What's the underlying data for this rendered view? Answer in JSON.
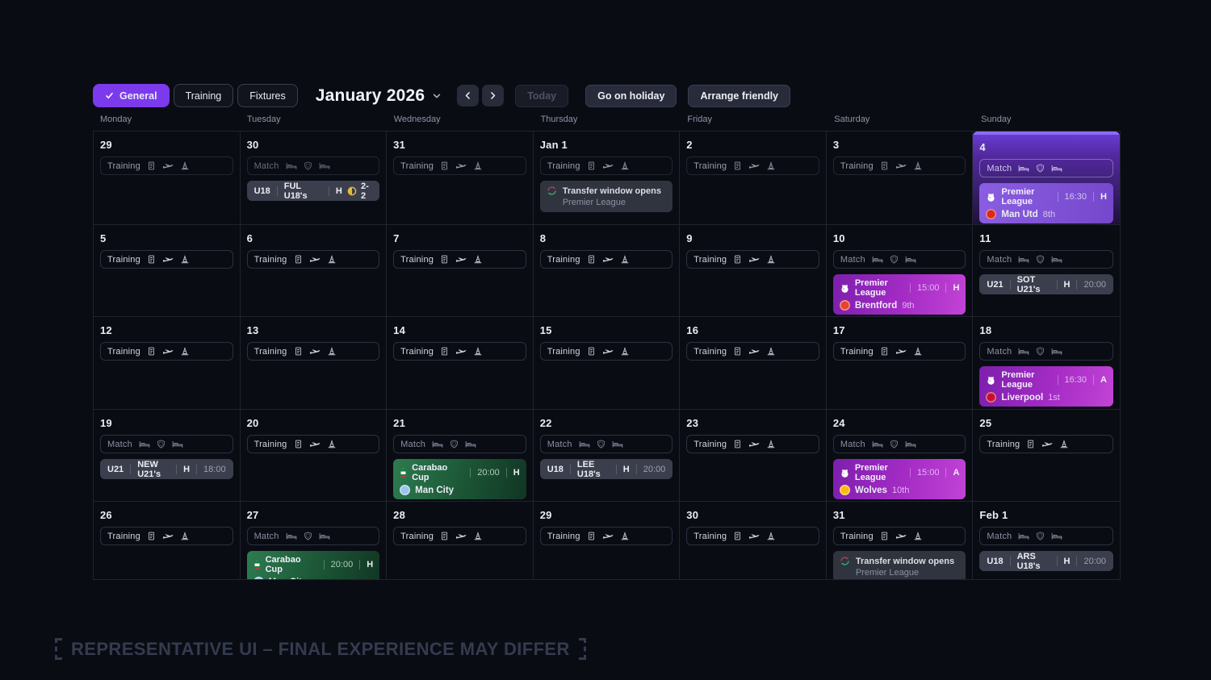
{
  "tabs": [
    {
      "label": "General",
      "active": true,
      "icon": "check"
    },
    {
      "label": "Training",
      "active": false
    },
    {
      "label": "Fixtures",
      "active": false
    }
  ],
  "toolbar": {
    "title": "January 2026",
    "today_label": "Today",
    "holiday_label": "Go on holiday",
    "friendly_label": "Arrange friendly"
  },
  "weekdays": [
    "Monday",
    "Tuesday",
    "Wednesday",
    "Thursday",
    "Friday",
    "Saturday",
    "Sunday"
  ],
  "chip_icons": {
    "training": [
      "clipboard",
      "plane",
      "cone"
    ],
    "match": [
      "bed",
      "shield",
      "bed"
    ]
  },
  "chip_labels": {
    "training": "Training",
    "match": "Match"
  },
  "colors": {
    "accent_purple": "#7c3aed",
    "pl_card_purple": "#a52cc5",
    "cup_card_green": "#1c5737",
    "draw_yellow": "#e3b93c"
  },
  "calendar": {
    "days": [
      {
        "label": "29",
        "past": true,
        "chip": "training",
        "events": []
      },
      {
        "label": "30",
        "past": true,
        "chip": "match",
        "events": [
          {
            "type": "result",
            "level": "U18",
            "opponent": "FUL U18's",
            "venue": "H",
            "score": "2-2",
            "outcome_icon": "draw-indicator"
          }
        ]
      },
      {
        "label": "31",
        "past": true,
        "chip": "training",
        "events": []
      },
      {
        "label": "Jan 1",
        "past": true,
        "chip": "training",
        "events": [
          {
            "type": "transfer",
            "title": "Transfer window opens",
            "subtitle": "Premier League"
          }
        ]
      },
      {
        "label": "2",
        "past": true,
        "chip": "training",
        "events": []
      },
      {
        "label": "3",
        "past": true,
        "chip": "training",
        "events": []
      },
      {
        "label": "4",
        "today": true,
        "chip": "match",
        "events": [
          {
            "type": "league",
            "style": "pl-today",
            "competition": "Premier League",
            "time": "16:30",
            "venue": "H",
            "club": "Man Utd",
            "position": "8th",
            "crest_color": "#da291c"
          }
        ]
      },
      {
        "label": "5",
        "chip": "training",
        "events": []
      },
      {
        "label": "6",
        "chip": "training",
        "events": []
      },
      {
        "label": "7",
        "chip": "training",
        "events": []
      },
      {
        "label": "8",
        "chip": "training",
        "events": []
      },
      {
        "label": "9",
        "chip": "training",
        "events": []
      },
      {
        "label": "10",
        "chip": "match",
        "events": [
          {
            "type": "league",
            "style": "pl-bright",
            "competition": "Premier League",
            "time": "15:00",
            "venue": "H",
            "club": "Brentford",
            "position": "9th",
            "crest_color": "#e8432d"
          }
        ]
      },
      {
        "label": "11",
        "chip": "match",
        "events": [
          {
            "type": "fixture",
            "level": "U21",
            "opponent": "SOT U21's",
            "venue": "H",
            "time": "20:00"
          }
        ]
      },
      {
        "label": "12",
        "chip": "training",
        "events": []
      },
      {
        "label": "13",
        "chip": "training",
        "events": []
      },
      {
        "label": "14",
        "chip": "training",
        "events": []
      },
      {
        "label": "15",
        "chip": "training",
        "events": []
      },
      {
        "label": "16",
        "chip": "training",
        "events": []
      },
      {
        "label": "17",
        "chip": "training",
        "events": []
      },
      {
        "label": "18",
        "chip": "match",
        "events": [
          {
            "type": "league",
            "style": "pl-bright",
            "competition": "Premier League",
            "time": "16:30",
            "venue": "A",
            "club": "Liverpool",
            "position": "1st",
            "crest_color": "#c8102e"
          }
        ]
      },
      {
        "label": "19",
        "chip": "match",
        "events": [
          {
            "type": "fixture",
            "level": "U21",
            "opponent": "NEW U21's",
            "venue": "H",
            "time": "18:00"
          }
        ]
      },
      {
        "label": "20",
        "chip": "training",
        "events": []
      },
      {
        "label": "21",
        "chip": "match",
        "events": [
          {
            "type": "cup",
            "competition": "Carabao Cup",
            "time": "20:00",
            "venue": "H",
            "club": "Man City",
            "crest_color": "#98c5e9"
          }
        ]
      },
      {
        "label": "22",
        "chip": "match",
        "events": [
          {
            "type": "fixture",
            "level": "U18",
            "opponent": "LEE U18's",
            "venue": "H",
            "time": "20:00"
          }
        ]
      },
      {
        "label": "23",
        "chip": "training",
        "events": []
      },
      {
        "label": "24",
        "chip": "match",
        "events": [
          {
            "type": "league",
            "style": "pl-bright",
            "competition": "Premier League",
            "time": "15:00",
            "venue": "A",
            "club": "Wolves",
            "position": "10th",
            "crest_color": "#fdb913"
          }
        ]
      },
      {
        "label": "25",
        "chip": "training",
        "events": []
      },
      {
        "label": "26",
        "chip": "training",
        "events": []
      },
      {
        "label": "27",
        "chip": "match",
        "events": [
          {
            "type": "cup",
            "competition": "Carabao Cup",
            "time": "20:00",
            "venue": "H",
            "club": "Man City",
            "crest_color": "#98c5e9"
          }
        ]
      },
      {
        "label": "28",
        "chip": "training",
        "events": []
      },
      {
        "label": "29",
        "chip": "training",
        "events": []
      },
      {
        "label": "30",
        "chip": "training",
        "events": []
      },
      {
        "label": "31",
        "chip": "training",
        "events": [
          {
            "type": "transfer",
            "title": "Transfer window opens",
            "subtitle": "Premier League"
          }
        ]
      },
      {
        "label": "Feb 1",
        "chip": "match",
        "events": [
          {
            "type": "fixture",
            "level": "U18",
            "opponent": "ARS U18's",
            "venue": "H",
            "time": "20:00"
          }
        ]
      }
    ]
  },
  "disclaimer": "REPRESENTATIVE UI – FINAL EXPERIENCE MAY DIFFER"
}
